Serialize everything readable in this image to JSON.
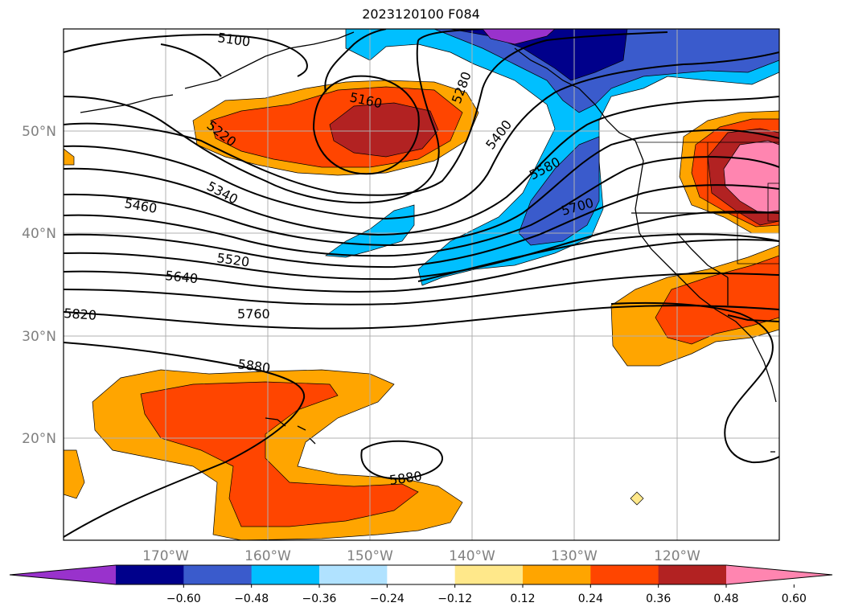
{
  "title": "2023120100 F084",
  "map": {
    "lat_labels": [
      "50°N",
      "40°N",
      "30°N",
      "20°N"
    ],
    "lon_labels": [
      "170°W",
      "160°W",
      "150°W",
      "140°W",
      "130°W",
      "120°W"
    ],
    "contour_labels": [
      "5100",
      "5160",
      "5220",
      "5280",
      "5340",
      "5400",
      "5460",
      "5520",
      "5580",
      "5640",
      "5700",
      "5760",
      "5820",
      "5880",
      "5880"
    ]
  },
  "colorbar": {
    "ticks": [
      "−0.60",
      "−0.48",
      "−0.36",
      "−0.24",
      "−0.12",
      "0.12",
      "0.24",
      "0.36",
      "0.48",
      "0.60"
    ],
    "colors": [
      "#9932cc",
      "#00008b",
      "#3a5bcc",
      "#00bfff",
      "#b0e2ff",
      "#ffffff",
      "#ffe88a",
      "#ffa500",
      "#ff4500",
      "#b22222",
      "#ff85b0"
    ]
  }
}
